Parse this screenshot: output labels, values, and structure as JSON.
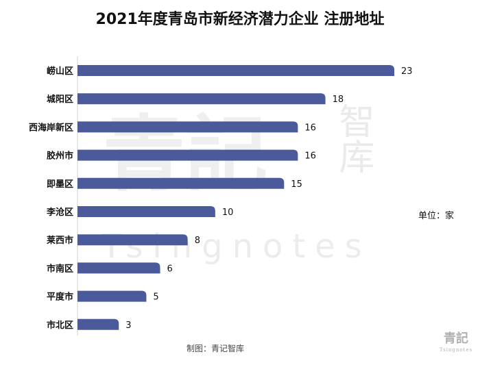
{
  "title": "2021年度青岛市新经济潜力企业 注册地址",
  "unit_label": "单位：家",
  "credit": "制图：青记智库",
  "watermark": {
    "big": "青記",
    "side": "智库",
    "latin": "Tsingnotes"
  },
  "logo": {
    "zh": "青記",
    "en": "Tsingnotes"
  },
  "colors": {
    "bar": "#4a5a9a",
    "axis": "#d0d0d0",
    "text": "#111111"
  },
  "chart_data": {
    "type": "bar",
    "orientation": "horizontal",
    "categories": [
      "崂山区",
      "城阳区",
      "西海岸新区",
      "胶州市",
      "即墨区",
      "李沧区",
      "莱西市",
      "市南区",
      "平度市",
      "市北区"
    ],
    "values": [
      23,
      18,
      16,
      16,
      15,
      10,
      8,
      6,
      5,
      3
    ],
    "title": "2021年度青岛市新经济潜力企业 注册地址",
    "xlabel": "",
    "ylabel": "",
    "xlim": [
      0,
      23
    ],
    "grid": false,
    "legend": "none"
  }
}
